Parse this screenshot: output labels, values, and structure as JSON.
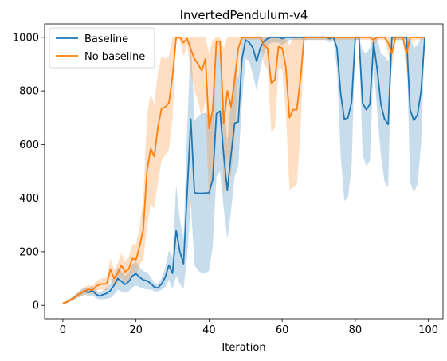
{
  "chart_data": {
    "type": "line",
    "title": "InvertedPendulum-v4",
    "xlabel": "Iteration",
    "ylabel": "",
    "xlim": [
      -5,
      104
    ],
    "ylim": [
      -50,
      1050
    ],
    "xticks": [
      0,
      20,
      40,
      60,
      80,
      100
    ],
    "yticks": [
      0,
      200,
      400,
      600,
      800,
      1000
    ],
    "legend_position": "upper-left",
    "grid": false,
    "series": [
      {
        "name": "Baseline",
        "color": "#1f77b4",
        "band_color": "#1f77b4",
        "x": [
          0,
          1,
          2,
          3,
          4,
          5,
          6,
          7,
          8,
          9,
          10,
          11,
          12,
          13,
          14,
          15,
          16,
          17,
          18,
          19,
          20,
          21,
          22,
          23,
          24,
          25,
          26,
          27,
          28,
          29,
          30,
          31,
          32,
          33,
          34,
          35,
          36,
          37,
          38,
          39,
          40,
          41,
          42,
          43,
          44,
          45,
          46,
          47,
          48,
          49,
          50,
          51,
          52,
          53,
          54,
          55,
          56,
          57,
          58,
          59,
          60,
          61,
          62,
          63,
          64,
          65,
          66,
          67,
          68,
          69,
          70,
          71,
          72,
          73,
          74,
          75,
          76,
          77,
          78,
          79,
          80,
          81,
          82,
          83,
          84,
          85,
          86,
          87,
          88,
          89,
          90,
          91,
          92,
          93,
          94,
          95,
          96,
          97,
          98,
          99
        ],
        "y": [
          8,
          12,
          20,
          28,
          38,
          46,
          54,
          48,
          56,
          42,
          35,
          40,
          45,
          55,
          75,
          100,
          90,
          78,
          88,
          110,
          118,
          105,
          95,
          92,
          82,
          68,
          65,
          80,
          105,
          150,
          120,
          280,
          200,
          155,
          420,
          695,
          420,
          418,
          418,
          419,
          420,
          470,
          715,
          725,
          560,
          428,
          560,
          680,
          685,
          920,
          990,
          980,
          960,
          910,
          960,
          985,
          995,
          1000,
          1000,
          1000,
          995,
          1000,
          1000,
          1000,
          1000,
          1000,
          1000,
          1000,
          1000,
          1000,
          1000,
          1000,
          1000,
          995,
          1000,
          960,
          790,
          695,
          700,
          760,
          1000,
          1000,
          755,
          730,
          750,
          980,
          880,
          750,
          695,
          675,
          1000,
          1000,
          1000,
          1000,
          1000,
          730,
          690,
          710,
          800,
          1000
        ],
        "y_lower": [
          5,
          8,
          14,
          20,
          28,
          34,
          40,
          34,
          38,
          28,
          22,
          24,
          25,
          28,
          40,
          58,
          52,
          46,
          52,
          66,
          74,
          68,
          62,
          60,
          58,
          52,
          52,
          58,
          68,
          95,
          60,
          110,
          80,
          60,
          180,
          380,
          150,
          130,
          120,
          120,
          130,
          220,
          480,
          500,
          360,
          250,
          350,
          480,
          520,
          760,
          920,
          910,
          860,
          800,
          880,
          940,
          970,
          980,
          980,
          980,
          970,
          980,
          990,
          990,
          990,
          990,
          990,
          990,
          990,
          990,
          990,
          990,
          990,
          980,
          990,
          880,
          560,
          390,
          400,
          520,
          990,
          990,
          560,
          520,
          540,
          900,
          720,
          560,
          460,
          440,
          990,
          990,
          990,
          990,
          990,
          460,
          420,
          450,
          600,
          990
        ],
        "y_upper": [
          11,
          16,
          26,
          36,
          48,
          58,
          68,
          62,
          74,
          56,
          48,
          56,
          65,
          82,
          110,
          142,
          128,
          110,
          124,
          154,
          162,
          142,
          128,
          124,
          106,
          84,
          78,
          102,
          142,
          205,
          180,
          450,
          320,
          250,
          660,
          1000,
          690,
          706,
          716,
          718,
          710,
          720,
          950,
          950,
          760,
          606,
          770,
          880,
          850,
          1000,
          1000,
          1000,
          1000,
          1000,
          1000,
          1000,
          1000,
          1000,
          1000,
          1000,
          1000,
          1000,
          1000,
          1000,
          1000,
          1000,
          1000,
          1000,
          1000,
          1000,
          1000,
          1000,
          1000,
          1000,
          1000,
          1000,
          1000,
          1000,
          1000,
          1000,
          1000,
          1000,
          950,
          940,
          960,
          1000,
          1000,
          940,
          930,
          910,
          1000,
          1000,
          1000,
          1000,
          1000,
          1000,
          960,
          970,
          1000,
          1000
        ]
      },
      {
        "name": "No baseline",
        "color": "#ff7f0e",
        "band_color": "#ff7f0e",
        "x": [
          0,
          1,
          2,
          3,
          4,
          5,
          6,
          7,
          8,
          9,
          10,
          11,
          12,
          13,
          14,
          15,
          16,
          17,
          18,
          19,
          20,
          21,
          22,
          23,
          24,
          25,
          26,
          27,
          28,
          29,
          30,
          31,
          32,
          33,
          34,
          35,
          36,
          37,
          38,
          39,
          40,
          41,
          42,
          43,
          44,
          45,
          46,
          47,
          48,
          49,
          50,
          51,
          52,
          53,
          54,
          55,
          56,
          57,
          58,
          59,
          60,
          61,
          62,
          63,
          64,
          65,
          66,
          67,
          68,
          69,
          70,
          71,
          72,
          73,
          74,
          75,
          76,
          77,
          78,
          79,
          80,
          81,
          82,
          83,
          84,
          85,
          86,
          87,
          88,
          89,
          90,
          91,
          92,
          93,
          94,
          95,
          96,
          97,
          98,
          99
        ],
        "y": [
          8,
          12,
          20,
          28,
          38,
          46,
          54,
          60,
          56,
          70,
          78,
          80,
          80,
          135,
          100,
          120,
          150,
          125,
          135,
          175,
          170,
          220,
          285,
          500,
          585,
          555,
          665,
          735,
          740,
          755,
          855,
          1000,
          1000,
          980,
          995,
          955,
          920,
          900,
          875,
          920,
          660,
          730,
          985,
          985,
          680,
          800,
          740,
          840,
          960,
          1000,
          1000,
          1000,
          1000,
          1000,
          1000,
          970,
          960,
          830,
          840,
          965,
          960,
          890,
          700,
          730,
          730,
          845,
          1000,
          1000,
          1000,
          1000,
          1000,
          1000,
          1000,
          1000,
          1000,
          1000,
          1000,
          1000,
          1000,
          1000,
          1000,
          1000,
          1000,
          1000,
          1000,
          990,
          1000,
          1000,
          1000,
          980,
          940,
          1000,
          1000,
          1000,
          940,
          1000,
          1000,
          1000,
          1000,
          1000
        ],
        "y_lower": [
          5,
          8,
          14,
          20,
          28,
          34,
          40,
          44,
          40,
          52,
          58,
          58,
          56,
          95,
          68,
          84,
          104,
          84,
          92,
          122,
          112,
          150,
          170,
          290,
          380,
          360,
          460,
          540,
          560,
          580,
          700,
          990,
          990,
          930,
          970,
          870,
          800,
          760,
          700,
          760,
          380,
          470,
          950,
          950,
          400,
          560,
          480,
          620,
          880,
          990,
          990,
          990,
          990,
          990,
          990,
          900,
          880,
          650,
          660,
          880,
          880,
          720,
          430,
          440,
          450,
          640,
          990,
          990,
          990,
          990,
          990,
          990,
          990,
          990,
          990,
          990,
          990,
          990,
          990,
          990,
          990,
          990,
          990,
          990,
          990,
          960,
          990,
          990,
          990,
          940,
          880,
          990,
          990,
          990,
          860,
          990,
          990,
          990,
          990,
          990
        ],
        "y_upper": [
          11,
          16,
          26,
          36,
          48,
          58,
          68,
          76,
          72,
          88,
          98,
          102,
          104,
          175,
          132,
          156,
          196,
          166,
          178,
          228,
          228,
          290,
          400,
          710,
          790,
          750,
          870,
          930,
          920,
          930,
          1000,
          1000,
          1000,
          1000,
          1000,
          1000,
          1000,
          1000,
          1000,
          1000,
          940,
          990,
          1000,
          1000,
          960,
          1000,
          1000,
          1000,
          1000,
          1000,
          1000,
          1000,
          1000,
          1000,
          1000,
          1000,
          1000,
          1000,
          1000,
          1000,
          1000,
          1000,
          970,
          1000,
          1000,
          1000,
          1000,
          1000,
          1000,
          1000,
          1000,
          1000,
          1000,
          1000,
          1000,
          1000,
          1000,
          1000,
          1000,
          1000,
          1000,
          1000,
          1000,
          1000,
          1000,
          1000,
          1000,
          1000,
          1000,
          1000,
          1000,
          1000,
          1000,
          1000,
          1000,
          1000,
          1000,
          1000,
          1000,
          1000
        ]
      }
    ]
  }
}
